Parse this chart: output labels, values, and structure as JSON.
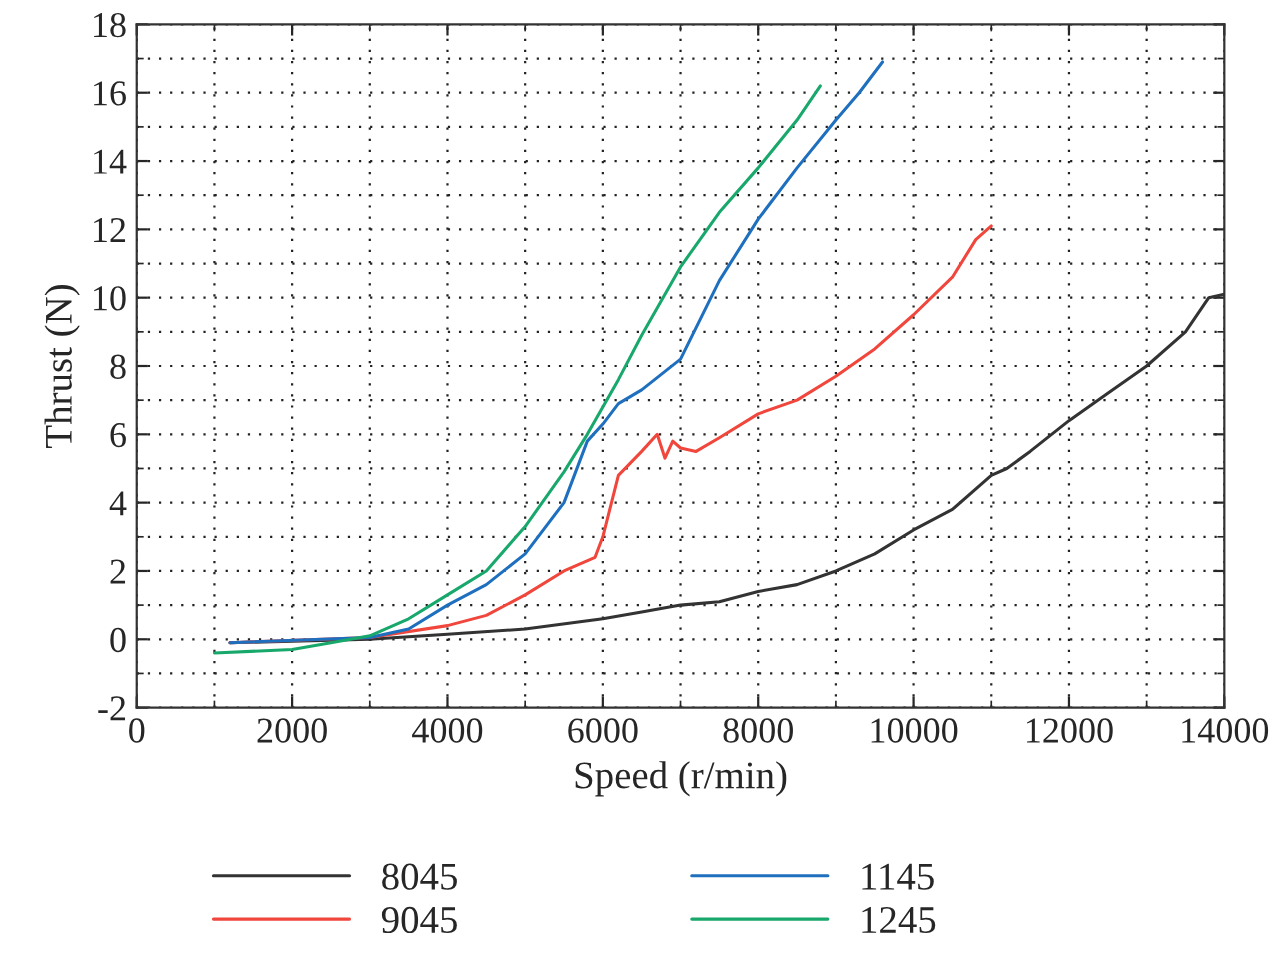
{
  "chart_data": {
    "type": "line",
    "xlabel": "Speed (r/min)",
    "ylabel": "Thrust (N)",
    "xlim": [
      0,
      14000
    ],
    "xticks": [
      0,
      2000,
      4000,
      6000,
      8000,
      10000,
      12000,
      14000
    ],
    "ylim": [
      -2,
      18
    ],
    "yticks": [
      -2,
      0,
      2,
      4,
      6,
      8,
      10,
      12,
      14,
      16,
      18
    ],
    "grid": true,
    "legend": "bottom",
    "line_style": "solid",
    "marker": "none",
    "series": [
      {
        "name": "8045",
        "color": "#333333",
        "x": [
          1200,
          3000,
          4000,
          5000,
          6000,
          6500,
          7000,
          7500,
          8000,
          8500,
          9000,
          9500,
          10000,
          10500,
          11000,
          11200,
          11500,
          12000,
          12500,
          13000,
          13500,
          13800,
          14000
        ],
        "values": [
          -0.1,
          0.0,
          0.15,
          0.3,
          0.6,
          0.8,
          1.0,
          1.1,
          1.4,
          1.6,
          2.0,
          2.5,
          3.2,
          3.8,
          4.8,
          5.0,
          5.5,
          6.4,
          7.2,
          8.0,
          9.0,
          10.0,
          10.1
        ]
      },
      {
        "name": "9045",
        "color": "#f0463c",
        "x": [
          1200,
          3000,
          4000,
          4500,
          5000,
          5500,
          5900,
          6000,
          6200,
          6500,
          6700,
          6800,
          6900,
          7000,
          7200,
          7500,
          8000,
          8500,
          9000,
          9500,
          10000,
          10500,
          10800,
          11000
        ],
        "values": [
          -0.1,
          0.05,
          0.4,
          0.7,
          1.3,
          2.0,
          2.4,
          3.0,
          4.8,
          5.5,
          6.0,
          5.3,
          5.8,
          5.6,
          5.5,
          5.9,
          6.6,
          7.0,
          7.7,
          8.5,
          9.5,
          10.6,
          11.7,
          12.1
        ]
      },
      {
        "name": "1145",
        "color": "#1f6fbf",
        "x": [
          1200,
          3000,
          3500,
          4000,
          4500,
          5000,
          5500,
          5800,
          6000,
          6200,
          6500,
          7000,
          7500,
          8000,
          8500,
          9000,
          9300,
          9600
        ],
        "values": [
          -0.1,
          0.05,
          0.3,
          1.0,
          1.6,
          2.5,
          4.0,
          5.8,
          6.3,
          6.9,
          7.3,
          8.2,
          10.5,
          12.3,
          13.8,
          15.2,
          16.0,
          16.9
        ]
      },
      {
        "name": "1245",
        "color": "#18a86b",
        "x": [
          1000,
          2000,
          2500,
          3000,
          3500,
          4000,
          4500,
          5000,
          5500,
          5800,
          6200,
          6500,
          7000,
          7500,
          8000,
          8500,
          8800
        ],
        "values": [
          -0.4,
          -0.3,
          -0.1,
          0.1,
          0.6,
          1.3,
          2.0,
          3.3,
          4.9,
          6.0,
          7.6,
          8.9,
          10.9,
          12.5,
          13.8,
          15.2,
          16.2
        ]
      }
    ]
  }
}
